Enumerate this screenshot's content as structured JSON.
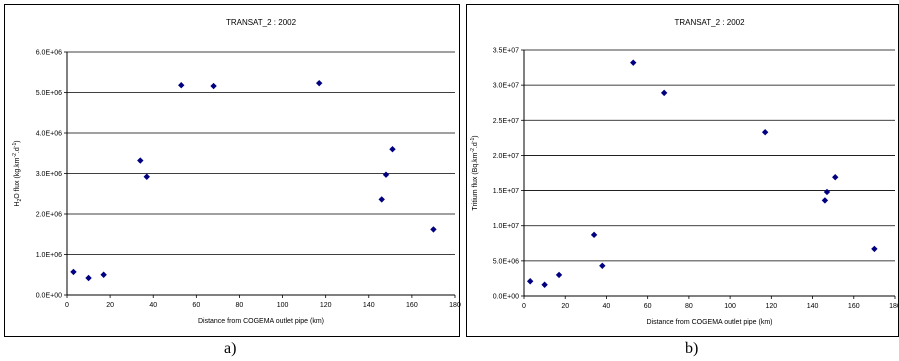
{
  "chart_data": [
    {
      "type": "scatter",
      "title": "TRANSAT_2 : 2002",
      "xlabel": "Distance from COGEMA outlet pipe (km)",
      "ylabel_parts": [
        "H",
        "2",
        "O flux (kg.km",
        "-2",
        ".d",
        "-1",
        ")"
      ],
      "xlim": [
        0,
        180
      ],
      "ylim": [
        0,
        6000000
      ],
      "x_ticks": [
        0,
        20,
        40,
        60,
        80,
        100,
        120,
        140,
        160,
        180
      ],
      "y_ticks": [
        0,
        1000000,
        2000000,
        3000000,
        4000000,
        5000000,
        6000000
      ],
      "y_tick_labels": [
        "0.0E+00",
        "1.0E+06",
        "2.0E+06",
        "3.0E+06",
        "4.0E+06",
        "5.0E+06",
        "6.0E+06"
      ],
      "grid": "horizontal",
      "marker_color": "#000080",
      "points": [
        [
          3,
          570000
        ],
        [
          10,
          420000
        ],
        [
          17,
          500000
        ],
        [
          34,
          3320000
        ],
        [
          37,
          2920000
        ],
        [
          53,
          5180000
        ],
        [
          68,
          5160000
        ],
        [
          117,
          5230000
        ],
        [
          146,
          2360000
        ],
        [
          148,
          2970000
        ],
        [
          151,
          3600000
        ],
        [
          170,
          1620000
        ]
      ]
    },
    {
      "type": "scatter",
      "title": "TRANSAT_2 : 2002",
      "xlabel": "Distance from COGEMA outlet pipe (km)",
      "ylabel_parts": [
        "Tritium flux (Bq.km",
        "-2",
        ".d",
        "-1",
        ")"
      ],
      "xlim": [
        0,
        180
      ],
      "ylim": [
        0,
        35000000
      ],
      "x_ticks": [
        0,
        20,
        40,
        60,
        80,
        100,
        120,
        140,
        160,
        180
      ],
      "y_ticks": [
        0,
        5000000,
        10000000,
        15000000,
        20000000,
        25000000,
        30000000,
        35000000
      ],
      "y_tick_labels": [
        "0.0E+00",
        "5.0E+06",
        "1.0E+07",
        "1.5E+07",
        "2.0E+07",
        "2.5E+07",
        "3.0E+07",
        "3.5E+07"
      ],
      "grid": "horizontal",
      "marker_color": "#000080",
      "points": [
        [
          3,
          2100000
        ],
        [
          10,
          1600000
        ],
        [
          17,
          3000000
        ],
        [
          34,
          8700000
        ],
        [
          38,
          4300000
        ],
        [
          53,
          33200000
        ],
        [
          68,
          28900000
        ],
        [
          117,
          23300000
        ],
        [
          146,
          13600000
        ],
        [
          147,
          14800000
        ],
        [
          151,
          16900000
        ],
        [
          170,
          6700000
        ]
      ]
    }
  ],
  "captions": [
    "a)",
    "b)"
  ]
}
